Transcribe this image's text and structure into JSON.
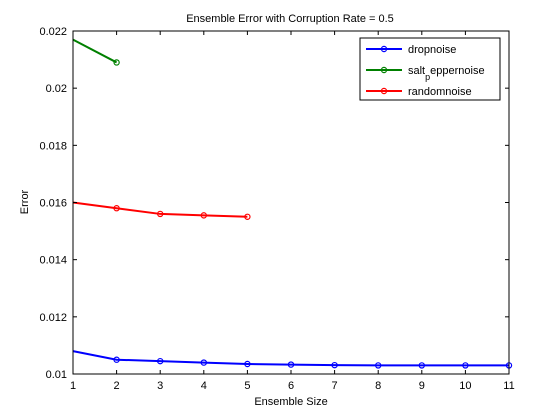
{
  "chart_data": {
    "type": "line",
    "title": "Ensemble Error with Corruption Rate = 0.5",
    "xlabel": "Ensemble Size",
    "ylabel": "Error",
    "xlim": [
      1,
      11
    ],
    "ylim": [
      0.01,
      0.022
    ],
    "x_ticks": [
      1,
      2,
      3,
      4,
      5,
      6,
      7,
      8,
      9,
      10,
      11
    ],
    "y_ticks": [
      0.01,
      0.012,
      0.014,
      0.016,
      0.018,
      0.02,
      0.022
    ],
    "y_tick_labels": [
      "0.01",
      "0.012",
      "0.014",
      "0.016",
      "0.018",
      "0.02",
      "0.022"
    ],
    "grid": false,
    "legend_position": "top-right",
    "series": [
      {
        "name": "dropnoise",
        "color": "#0000ff",
        "x": [
          1,
          2,
          3,
          4,
          5,
          6,
          7,
          8,
          9,
          10,
          11
        ],
        "y": [
          0.0108,
          0.0105,
          0.01045,
          0.0104,
          0.01035,
          0.01033,
          0.01031,
          0.0103,
          0.0103,
          0.0103,
          0.0103
        ]
      },
      {
        "name": "salt_peppernoise",
        "legend_label_main": "salt",
        "legend_label_sub": "p",
        "legend_label_rest": "eppernoise",
        "color": "#008000",
        "x": [
          1,
          2
        ],
        "y": [
          0.0217,
          0.0209
        ]
      },
      {
        "name": "randomnoise",
        "color": "#ff0000",
        "x": [
          1,
          2,
          3,
          4,
          5
        ],
        "y": [
          0.016,
          0.0158,
          0.0156,
          0.01555,
          0.0155
        ]
      }
    ]
  }
}
